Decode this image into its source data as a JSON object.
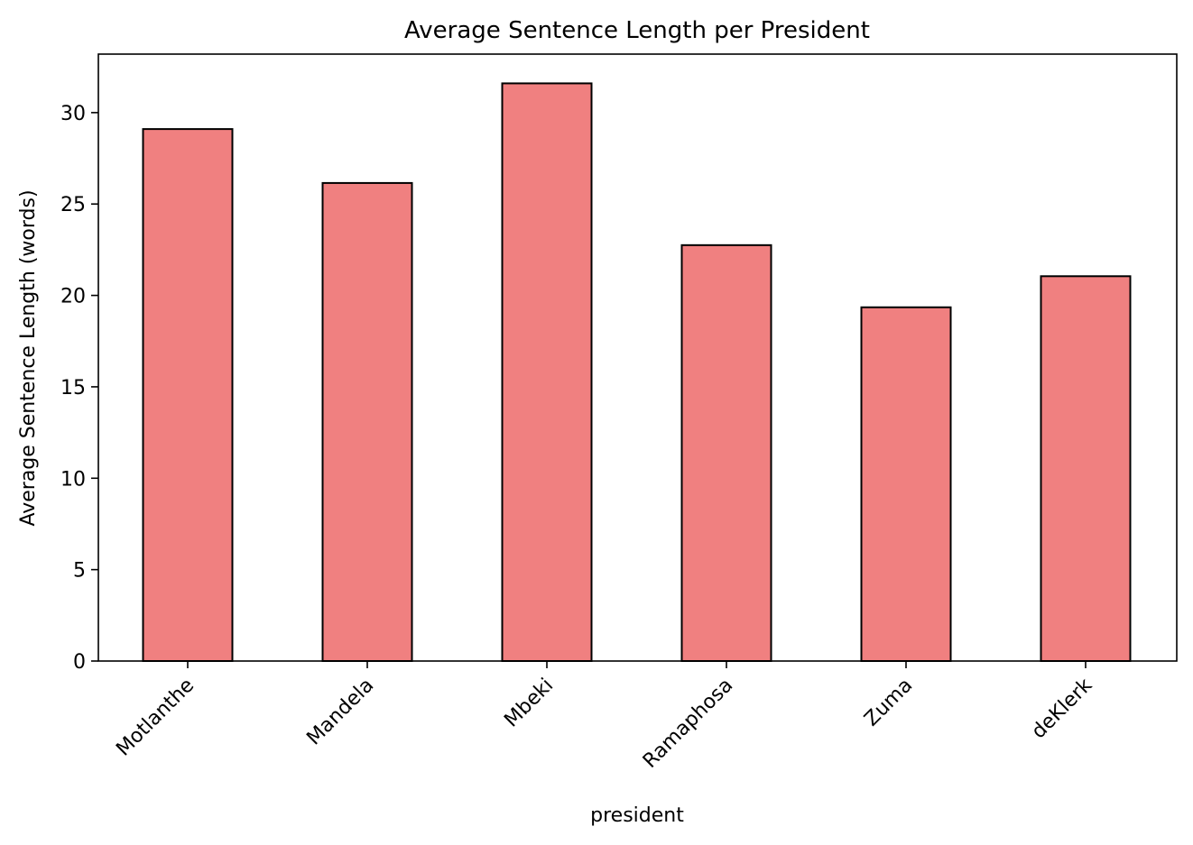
{
  "chart_data": {
    "type": "bar",
    "title": "Average Sentence Length per President",
    "xlabel": "president",
    "ylabel": "Average Sentence Length (words)",
    "categories": [
      "Motlanthe",
      "Mandela",
      "Mbeki",
      "Ramaphosa",
      "Zuma",
      "deKlerk"
    ],
    "values": [
      29.1,
      26.15,
      31.6,
      22.75,
      19.35,
      21.05
    ],
    "ylim": [
      0,
      33.2
    ],
    "yticks": [
      0,
      5,
      10,
      15,
      20,
      25,
      30
    ],
    "bar_color": "#f08080",
    "edge_color": "#000000",
    "grid": false,
    "legend": "none"
  }
}
